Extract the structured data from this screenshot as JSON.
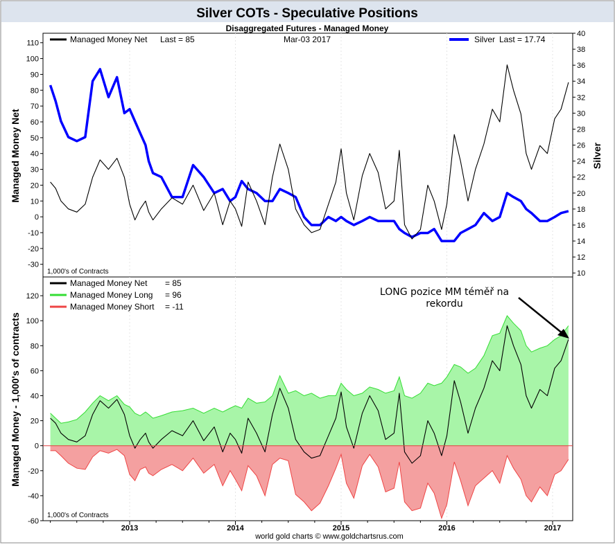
{
  "title": "Silver COTs - Speculative Positions",
  "subtitle": "Disaggregated Futures - Managed Money",
  "footer": "world gold charts © www.goldchartsrus.com",
  "colors": {
    "title_bg": "#dde4ee",
    "mm_net": "#000000",
    "silver": "#0000ff",
    "long_fill": "#a8f5a8",
    "long_line": "#33dd33",
    "short_fill": "#f4a0a0",
    "short_line": "#ee4444"
  },
  "x_axis_ticks": [
    "2013",
    "2014",
    "2015",
    "2016",
    "2017"
  ],
  "chart_data": [
    {
      "type": "line",
      "panel": "top",
      "legend_left": {
        "label": "Managed Money Net",
        "last_label": "Last = 85"
      },
      "date_label": "Mar-03  2017",
      "legend_right": {
        "label": "Silver",
        "last_label": "Last = 17.74"
      },
      "ylabel_left": "Managed Money Net",
      "ylabel_right": "Silver",
      "units_note": "1,000's of Contracts",
      "ylim_left": [
        -38,
        116
      ],
      "ylim_right": [
        9.5,
        40
      ],
      "yticks_left": [
        "110",
        "100",
        "90",
        "80",
        "70",
        "60",
        "50",
        "40",
        "30",
        "20",
        "10",
        "0",
        "-10",
        "-20",
        "-30"
      ],
      "yticks_right": [
        "40",
        "38",
        "36",
        "34",
        "32",
        "30",
        "28",
        "26",
        "24",
        "22",
        "20",
        "18",
        "16",
        "14",
        "12",
        "10"
      ],
      "x": [
        2012.25,
        2012.3,
        2012.35,
        2012.42,
        2012.5,
        2012.58,
        2012.65,
        2012.72,
        2012.8,
        2012.88,
        2012.95,
        2013.0,
        2013.05,
        2013.1,
        2013.15,
        2013.18,
        2013.22,
        2013.3,
        2013.4,
        2013.5,
        2013.6,
        2013.7,
        2013.8,
        2013.88,
        2013.95,
        2014.0,
        2014.06,
        2014.12,
        2014.2,
        2014.28,
        2014.35,
        2014.42,
        2014.5,
        2014.57,
        2014.65,
        2014.72,
        2014.8,
        2014.88,
        2014.95,
        2015.0,
        2015.05,
        2015.12,
        2015.2,
        2015.27,
        2015.35,
        2015.42,
        2015.5,
        2015.55,
        2015.6,
        2015.67,
        2015.75,
        2015.82,
        2015.88,
        2015.95,
        2016.0,
        2016.07,
        2016.13,
        2016.2,
        2016.27,
        2016.35,
        2016.43,
        2016.5,
        2016.57,
        2016.63,
        2016.7,
        2016.75,
        2016.8,
        2016.88,
        2016.95,
        2017.02,
        2017.08,
        2017.15
      ],
      "series": [
        {
          "name": "Managed Money Net",
          "values": [
            22,
            18,
            10,
            5,
            3,
            8,
            25,
            36,
            30,
            37,
            25,
            8,
            -2,
            5,
            10,
            3,
            -2,
            5,
            12,
            8,
            20,
            4,
            15,
            -5,
            10,
            5,
            -6,
            22,
            10,
            -5,
            25,
            46,
            30,
            5,
            -5,
            -10,
            -8,
            8,
            22,
            43,
            15,
            -2,
            26,
            40,
            28,
            5,
            10,
            42,
            -5,
            -14,
            -8,
            20,
            10,
            -8,
            8,
            52,
            35,
            10,
            30,
            46,
            68,
            60,
            96,
            80,
            65,
            40,
            30,
            45,
            40,
            62,
            68,
            85
          ]
        },
        {
          "name": "Silver",
          "values": [
            33.5,
            31.5,
            29,
            27,
            26.5,
            27,
            34,
            35.5,
            32,
            34.5,
            30,
            30.5,
            29,
            27.5,
            26,
            24,
            22.5,
            22,
            19.5,
            19.5,
            23.5,
            22,
            20,
            20.5,
            19,
            19.5,
            21.5,
            20.5,
            20,
            19,
            19,
            20.5,
            20,
            19.5,
            17,
            16,
            16,
            17,
            16.5,
            17,
            16.5,
            16,
            16.5,
            17,
            16.5,
            16.5,
            16.5,
            15.5,
            15,
            14.5,
            15,
            15,
            15.5,
            14,
            14,
            14,
            15,
            15.5,
            16,
            17.5,
            16.5,
            17,
            20,
            19.5,
            19,
            18,
            17.5,
            16.5,
            16.5,
            17,
            17.5,
            17.74
          ]
        }
      ]
    },
    {
      "type": "area",
      "panel": "bottom",
      "legend": [
        {
          "label": "Managed Money Net",
          "last_label": "= 85"
        },
        {
          "label": "Managed Money Long",
          "last_label": "= 96"
        },
        {
          "label": "Managed Money Short",
          "last_label": "= -11"
        }
      ],
      "annotation_line1": "LONG pozice MM téměř na",
      "annotation_line2": "rekordu",
      "ylabel": "Managed Money - 1,000's of contracts",
      "units_note": "1,000's of Contracts",
      "ylim": [
        -60,
        135
      ],
      "yticks": [
        "120",
        "100",
        "80",
        "60",
        "40",
        "20",
        "0",
        "-20",
        "-40",
        "-60"
      ],
      "x": [
        2012.25,
        2012.3,
        2012.35,
        2012.42,
        2012.5,
        2012.58,
        2012.65,
        2012.72,
        2012.8,
        2012.88,
        2012.95,
        2013.0,
        2013.05,
        2013.1,
        2013.15,
        2013.18,
        2013.22,
        2013.3,
        2013.4,
        2013.5,
        2013.6,
        2013.7,
        2013.8,
        2013.88,
        2013.95,
        2014.0,
        2014.06,
        2014.12,
        2014.2,
        2014.28,
        2014.35,
        2014.42,
        2014.5,
        2014.57,
        2014.65,
        2014.72,
        2014.8,
        2014.88,
        2014.95,
        2015.0,
        2015.05,
        2015.12,
        2015.2,
        2015.27,
        2015.35,
        2015.42,
        2015.5,
        2015.55,
        2015.6,
        2015.67,
        2015.75,
        2015.82,
        2015.88,
        2015.95,
        2016.0,
        2016.07,
        2016.13,
        2016.2,
        2016.27,
        2016.35,
        2016.43,
        2016.5,
        2016.57,
        2016.63,
        2016.7,
        2016.75,
        2016.8,
        2016.88,
        2016.95,
        2017.02,
        2017.08,
        2017.15
      ],
      "series": [
        {
          "name": "Managed Money Net",
          "values": [
            22,
            18,
            10,
            5,
            3,
            8,
            25,
            36,
            30,
            37,
            25,
            8,
            -2,
            5,
            10,
            3,
            -2,
            5,
            12,
            8,
            20,
            4,
            15,
            -5,
            10,
            5,
            -6,
            22,
            10,
            -5,
            25,
            46,
            30,
            5,
            -5,
            -10,
            -8,
            8,
            22,
            43,
            15,
            -2,
            26,
            40,
            28,
            5,
            10,
            42,
            -5,
            -14,
            -8,
            20,
            10,
            -8,
            8,
            52,
            35,
            10,
            30,
            46,
            68,
            60,
            96,
            80,
            65,
            40,
            30,
            45,
            40,
            62,
            68,
            85
          ]
        },
        {
          "name": "Managed Money Long",
          "values": [
            26,
            22,
            18,
            19,
            21,
            27,
            34,
            40,
            36,
            40,
            33,
            31,
            26,
            24,
            27,
            25,
            22,
            24,
            27,
            28,
            30,
            26,
            30,
            27,
            30,
            32,
            30,
            38,
            34,
            35,
            40,
            56,
            42,
            44,
            40,
            42,
            38,
            40,
            40,
            50,
            45,
            40,
            42,
            47,
            45,
            42,
            44,
            55,
            40,
            38,
            42,
            50,
            48,
            50,
            55,
            65,
            63,
            58,
            62,
            72,
            88,
            90,
            104,
            98,
            92,
            80,
            75,
            78,
            80,
            85,
            88,
            96
          ]
        },
        {
          "name": "Managed Money Short",
          "values": [
            -4,
            -4,
            -8,
            -14,
            -18,
            -19,
            -9,
            -4,
            -6,
            -3,
            -8,
            -23,
            -28,
            -19,
            -17,
            -22,
            -24,
            -19,
            -15,
            -20,
            -10,
            -22,
            -15,
            -32,
            -20,
            -27,
            -36,
            -16,
            -24,
            -40,
            -15,
            -10,
            -12,
            -39,
            -45,
            -52,
            -46,
            -32,
            -18,
            -7,
            -30,
            -42,
            -16,
            -7,
            -17,
            -37,
            -34,
            -13,
            -45,
            -52,
            -50,
            -30,
            -38,
            -58,
            -47,
            -13,
            -28,
            -48,
            -32,
            -26,
            -20,
            -30,
            -8,
            -18,
            -27,
            -40,
            -45,
            -33,
            -40,
            -23,
            -20,
            -11
          ]
        }
      ]
    }
  ]
}
